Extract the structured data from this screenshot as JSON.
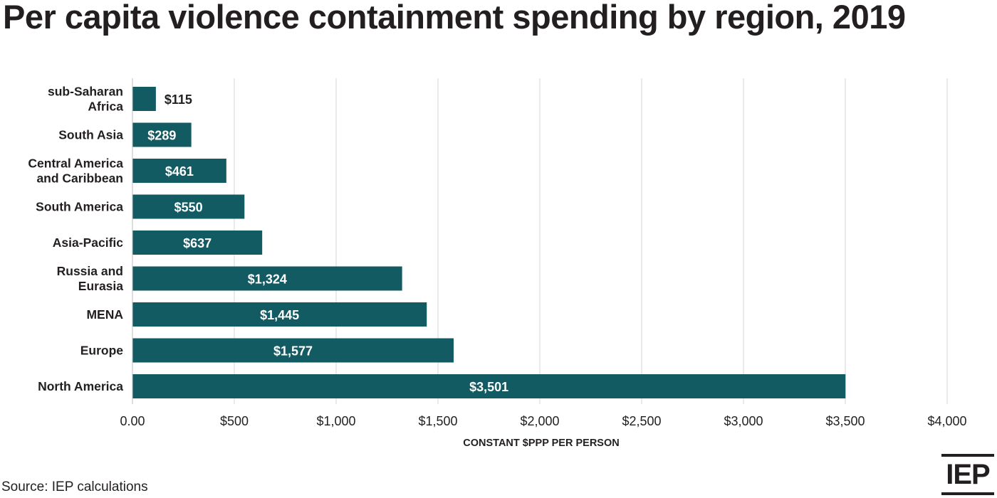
{
  "chart_data": {
    "type": "bar",
    "orientation": "horizontal",
    "title": "Per capita violence containment spending by region, 2019",
    "categories": [
      [
        "sub-Saharan",
        "Africa"
      ],
      [
        "South Asia"
      ],
      [
        "Central America",
        "and Caribbean"
      ],
      [
        "South America"
      ],
      [
        "Asia-Pacific"
      ],
      [
        "Russia and",
        "Eurasia"
      ],
      [
        "MENA"
      ],
      [
        "Europe"
      ],
      [
        "North America"
      ]
    ],
    "values": [
      115,
      289,
      461,
      550,
      637,
      1324,
      1445,
      1577,
      3501
    ],
    "value_labels": [
      "$115",
      "$289",
      "$461",
      "$550",
      "$637",
      "$1,324",
      "$1,445",
      "$1,577",
      "$3,501"
    ],
    "xlabel": "CONSTANT $PPP PER PERSON",
    "ylabel": "",
    "xlim": [
      0,
      4000
    ],
    "xticks": [
      0,
      500,
      1000,
      1500,
      2000,
      2500,
      3000,
      3500,
      4000
    ],
    "xtick_labels": [
      "0.00",
      "$500",
      "$1,000",
      "$1,500",
      "$2,000",
      "$2,500",
      "$3,000",
      "$3,500",
      "$4,000"
    ],
    "grid": "vertical",
    "bar_color": "#135b63"
  },
  "source": "Source: IEP calculations",
  "logo_text": "IEP"
}
